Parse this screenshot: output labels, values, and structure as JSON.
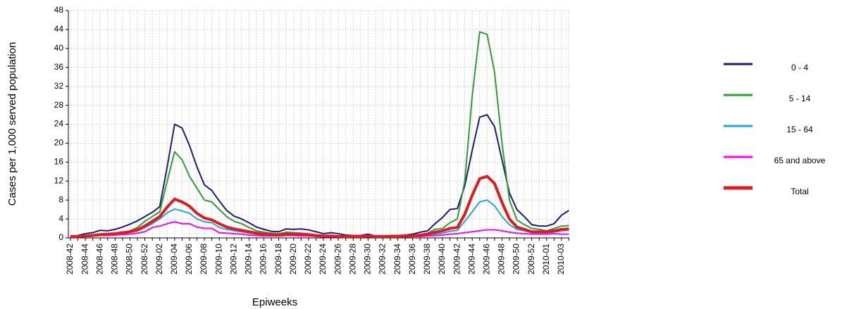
{
  "chart_data": {
    "type": "line",
    "x_label": "Epiweeks",
    "y_label": "Cases per 1,000 served population",
    "categories": [
      "2008-42",
      null,
      "2008-44",
      null,
      "2008-46",
      null,
      "2008-48",
      null,
      "2008-50",
      null,
      "2008-52",
      null,
      "2009-02",
      null,
      "2009-04",
      null,
      "2009-06",
      null,
      "2009-08",
      null,
      "2009-10",
      null,
      "2009-12",
      null,
      "2009-14",
      null,
      "2009-16",
      null,
      "2009-18",
      null,
      "2009-20",
      null,
      "2009-22",
      null,
      "2009-24",
      null,
      "2009-26",
      null,
      "2009-28",
      null,
      "2009-30",
      null,
      "2009-32",
      null,
      "2009-34",
      null,
      "2009-36",
      null,
      "2009-38",
      null,
      "2009-40",
      null,
      "2009-42",
      null,
      "2009-44",
      null,
      "2009-46",
      null,
      "2009-48",
      null,
      "2009-50",
      null,
      "2009-52",
      null,
      "2010-01",
      null,
      "2010-03",
      null
    ],
    "series": [
      {
        "name": "0 - 4",
        "color": "#1a1a80",
        "width": 2,
        "values": [
          0.3,
          0.5,
          0.9,
          1.1,
          1.6,
          1.5,
          1.8,
          2.3,
          2.9,
          3.6,
          4.5,
          5.4,
          6.6,
          15,
          24,
          23.2,
          19.5,
          15,
          11.2,
          10,
          7.8,
          5.8,
          4.6,
          4,
          3.2,
          2.3,
          1.8,
          1.4,
          1.3,
          1.9,
          1.8,
          1.9,
          1.7,
          1.3,
          0.9,
          1.1,
          0.9,
          0.6,
          0.5,
          0.5,
          0.8,
          0.4,
          0.4,
          0.5,
          0.5,
          0.6,
          0.8,
          1.2,
          1.5,
          3,
          4.3,
          6,
          6.2,
          11,
          18.5,
          25.5,
          26,
          23.5,
          16.5,
          9.5,
          6,
          4.5,
          2.8,
          2.5,
          2.5,
          3,
          4.8,
          5.8
        ]
      },
      {
        "name": "5 - 14",
        "color": "#2ca02c",
        "width": 2,
        "values": [
          0.3,
          0.3,
          0.4,
          0.5,
          0.7,
          0.8,
          0.9,
          1.1,
          1.5,
          2.2,
          3.5,
          4.5,
          5.5,
          12,
          18.2,
          16.5,
          13,
          10.5,
          8,
          7.6,
          6,
          4.5,
          3.5,
          3,
          2.2,
          1.5,
          1.2,
          1,
          0.9,
          1.2,
          1.1,
          1,
          0.8,
          0.5,
          0.4,
          0.4,
          0.3,
          0.3,
          0.3,
          0.3,
          0.4,
          0.3,
          0.3,
          0.3,
          0.3,
          0.4,
          0.5,
          0.6,
          1,
          1.8,
          2,
          3.2,
          4,
          12,
          30,
          43.5,
          43,
          35,
          20,
          8,
          3.8,
          2.8,
          2,
          1.8,
          1.5,
          2,
          2.5,
          2.6
        ]
      },
      {
        "name": "15 - 64",
        "color": "#1ea7e1",
        "width": 2,
        "values": [
          0.2,
          0.3,
          0.4,
          0.5,
          0.6,
          0.7,
          0.8,
          1,
          1.2,
          1.5,
          2.2,
          3,
          4,
          5.3,
          6.1,
          5.7,
          5.2,
          4,
          3.4,
          3.2,
          2.2,
          1.8,
          1.5,
          1.3,
          1,
          0.8,
          0.6,
          0.5,
          0.5,
          0.6,
          0.6,
          0.6,
          0.5,
          0.4,
          0.3,
          0.3,
          0.3,
          0.2,
          0.2,
          0.2,
          0.3,
          0.2,
          0.2,
          0.2,
          0.2,
          0.3,
          0.3,
          0.4,
          0.5,
          0.8,
          1,
          1.4,
          1.6,
          3.5,
          5.5,
          7.6,
          8,
          6.8,
          4.5,
          2.8,
          1.8,
          1.5,
          1.1,
          1,
          1,
          1.2,
          1.5,
          1.6
        ]
      },
      {
        "name": "65 and above",
        "color": "#ff00ff",
        "width": 2,
        "values": [
          0.2,
          0.2,
          0.3,
          0.4,
          0.5,
          0.5,
          0.6,
          0.7,
          0.8,
          1,
          1.3,
          2.2,
          2.5,
          3,
          3.4,
          3,
          3,
          2.3,
          2,
          2,
          1.1,
          1,
          0.9,
          0.8,
          0.6,
          0.5,
          0.4,
          0.4,
          0.4,
          0.5,
          0.5,
          0.4,
          0.4,
          0.3,
          0.2,
          0.2,
          0.2,
          0.2,
          0.2,
          0.2,
          0.2,
          0.2,
          0.2,
          0.2,
          0.2,
          0.2,
          0.3,
          0.3,
          0.4,
          0.5,
          0.6,
          0.8,
          0.9,
          1.1,
          1.3,
          1.5,
          1.7,
          1.7,
          1.5,
          1.2,
          1,
          0.9,
          0.8,
          0.8,
          0.8,
          0.9,
          0.8,
          0.8
        ]
      },
      {
        "name": "Total",
        "color": "#e31a1c",
        "width": 4,
        "values": [
          0.3,
          0.3,
          0.4,
          0.5,
          0.7,
          0.8,
          0.9,
          1.1,
          1.3,
          1.7,
          2.5,
          3.5,
          4.5,
          6.5,
          8.2,
          7.6,
          6.7,
          5.2,
          4.2,
          3.8,
          3,
          2.3,
          1.9,
          1.6,
          1.3,
          1,
          0.8,
          0.7,
          0.6,
          0.8,
          0.8,
          0.8,
          0.7,
          0.5,
          0.4,
          0.4,
          0.3,
          0.3,
          0.3,
          0.3,
          0.4,
          0.3,
          0.3,
          0.3,
          0.3,
          0.4,
          0.4,
          0.6,
          0.8,
          1.2,
          1.5,
          2,
          2.2,
          5,
          9,
          12.5,
          13,
          11.5,
          7.5,
          4,
          2.3,
          1.8,
          1.3,
          1.3,
          1.3,
          1.5,
          1.8,
          1.9
        ]
      }
    ],
    "ylim": [
      0,
      48
    ],
    "yticks": [
      0,
      4,
      8,
      12,
      16,
      20,
      24,
      28,
      32,
      36,
      40,
      44,
      48
    ],
    "grid": true,
    "legend": "right"
  }
}
